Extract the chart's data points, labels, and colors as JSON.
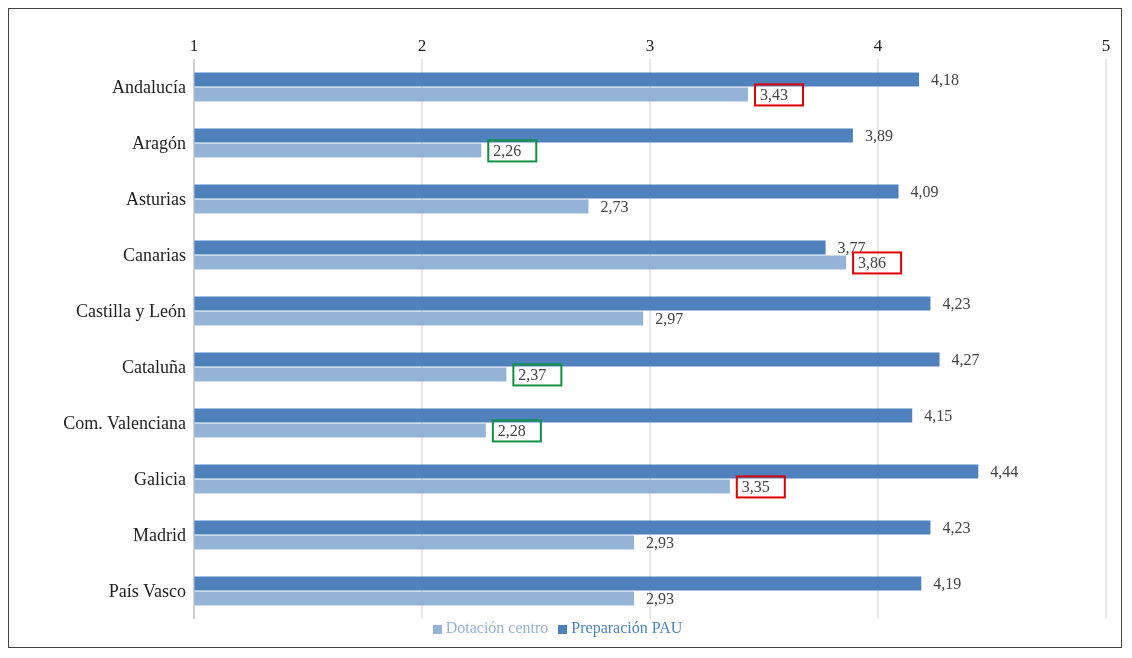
{
  "chart_data": {
    "type": "bar",
    "orientation": "horizontal",
    "categories": [
      "Andalucía",
      "Aragón",
      "Asturias",
      "Canarias",
      "Castilla y León",
      "Cataluña",
      "Com. Valenciana",
      "Galicia",
      "Madrid",
      "País Vasco"
    ],
    "series": [
      {
        "name": "Preparación PAU",
        "color": "#4f81bd",
        "values": [
          4.18,
          3.89,
          4.09,
          3.77,
          4.23,
          4.27,
          4.15,
          4.44,
          4.23,
          4.19
        ],
        "value_labels": [
          "4,18",
          "3,89",
          "4,09",
          "3,77",
          "4,23",
          "4,27",
          "4,15",
          "4,44",
          "4,23",
          "4,19"
        ]
      },
      {
        "name": "Dotación centro",
        "color": "#95b3d7",
        "values": [
          3.43,
          2.26,
          2.73,
          3.86,
          2.97,
          2.37,
          2.28,
          3.35,
          2.93,
          2.93
        ],
        "value_labels": [
          "3,43",
          "2,26",
          "2,73",
          "3,86",
          "2,97",
          "2,37",
          "2,28",
          "3,35",
          "2,93",
          "2,93"
        ]
      }
    ],
    "xlim": [
      1,
      5
    ],
    "xticks": [
      1,
      2,
      3,
      4,
      5
    ],
    "grid": "x",
    "legend": "bottom"
  }
}
